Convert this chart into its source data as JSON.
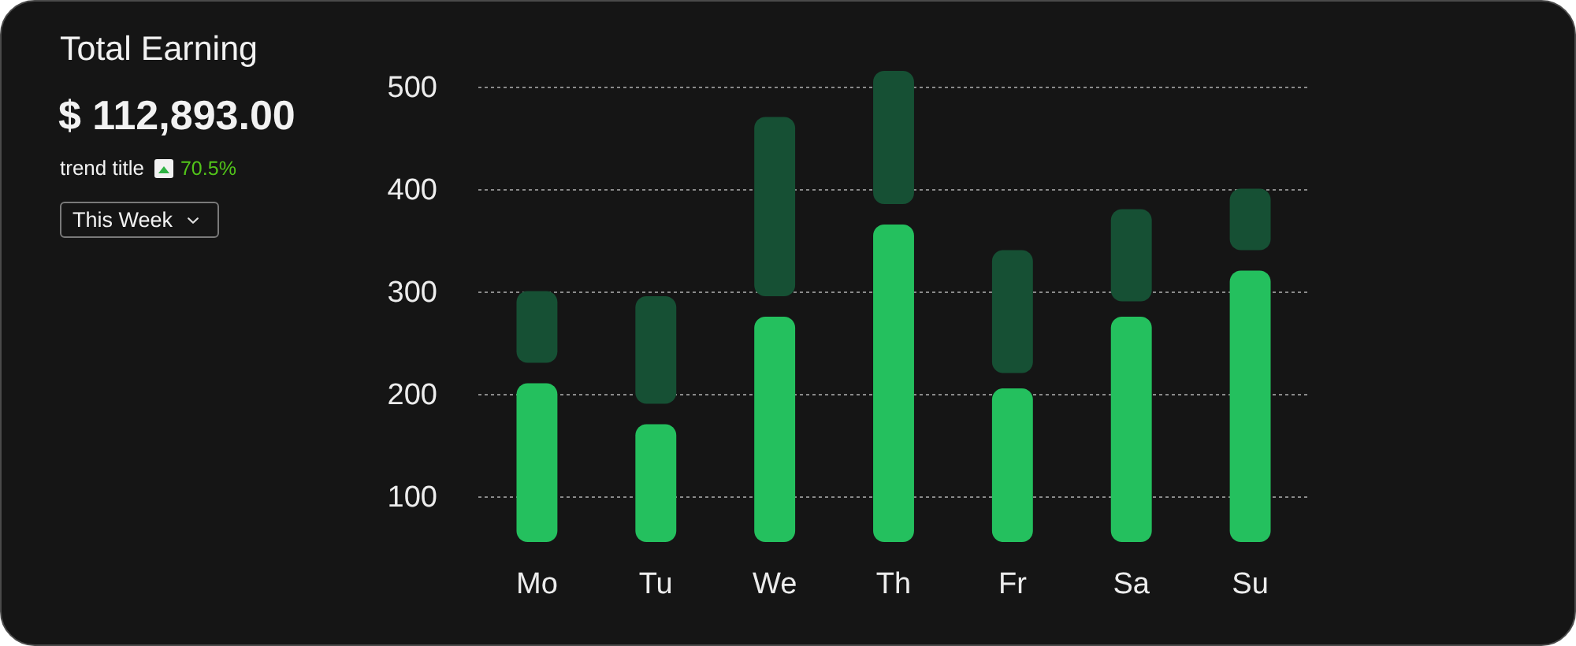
{
  "chart_data": {
    "type": "bar",
    "title": "Total Earning",
    "subtitle": "$ 112,893.00",
    "annotations": [
      "trend title",
      "70.5%",
      "This Week"
    ],
    "categories": [
      "Mo",
      "Tu",
      "We",
      "Th",
      "Fr",
      "Sa",
      "Su"
    ],
    "series": [
      {
        "color": "#24c05e",
        "base": [
          55,
          55,
          55,
          55,
          55,
          55,
          55
        ],
        "values": [
          155,
          115,
          220,
          310,
          150,
          220,
          265
        ]
      },
      {
        "color": "#165034",
        "base": [
          230,
          190,
          295,
          385,
          220,
          290,
          340
        ],
        "values": [
          70,
          105,
          175,
          130,
          120,
          90,
          60
        ]
      }
    ],
    "ylim": [
      55,
      515
    ],
    "yticks": [
      100,
      200,
      300,
      400,
      500
    ],
    "grid": "y"
  }
}
